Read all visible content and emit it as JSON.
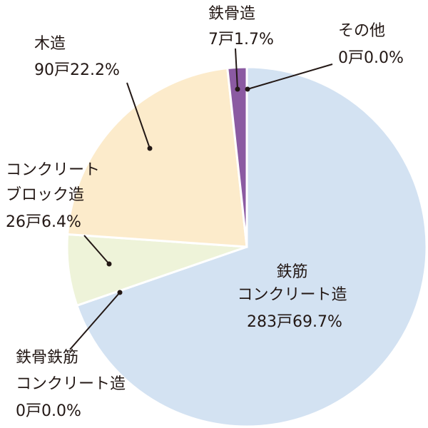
{
  "chart_data": {
    "type": "pie",
    "title": "",
    "slices": [
      {
        "name": "鉄筋コンクリート造",
        "value": 283,
        "percent": 69.7,
        "color": "#d3e2f2",
        "label_lines": [
          "鉄筋",
          "コンクリート造",
          "283戸69.7%"
        ]
      },
      {
        "name": "鉄骨鉄筋コンクリート造",
        "value": 0,
        "percent": 0.0,
        "color": "#d3e2f2",
        "label_lines": [
          "鉄骨鉄筋",
          "コンクリート造",
          "0戸0.0%"
        ]
      },
      {
        "name": "コンクリートブロック造",
        "value": 26,
        "percent": 6.4,
        "color": "#eef3d9",
        "label_lines": [
          "コンクリート",
          "ブロック造",
          "26戸6.4%"
        ]
      },
      {
        "name": "木造",
        "value": 90,
        "percent": 22.2,
        "color": "#fcebcb",
        "label_lines": [
          "木造",
          "90戸22.2%"
        ]
      },
      {
        "name": "鉄骨造",
        "value": 7,
        "percent": 1.7,
        "color": "#8b5aa2",
        "label_lines": [
          "鉄骨造",
          "7戸1.7%"
        ]
      },
      {
        "name": "その他",
        "value": 0,
        "percent": 0.0,
        "color": "#8b5aa2",
        "label_lines": [
          "その他",
          "0戸0.0%"
        ]
      }
    ]
  }
}
